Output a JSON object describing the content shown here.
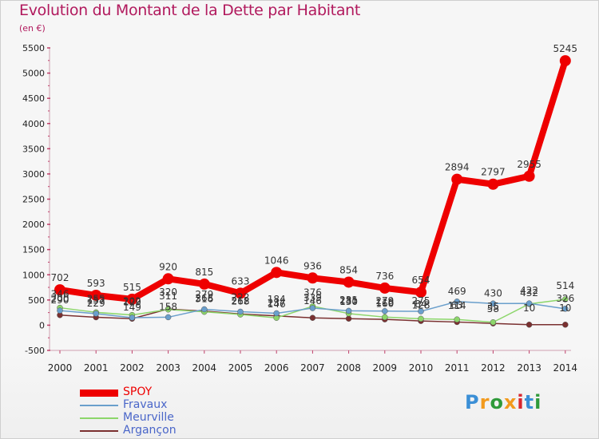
{
  "title": "Evolution du Montant de la Dette par Habitant",
  "subtitle": "(en €)",
  "logo": {
    "text": "Proxiti",
    "colors": [
      "#3b8fd6",
      "#f29a1d",
      "#2f9a3a",
      "#f29a1d",
      "#d8262e",
      "#3b8fd6",
      "#2f9a3a"
    ]
  },
  "chart_data": {
    "type": "line",
    "x": [
      "2000",
      "2001",
      "2002",
      "2003",
      "2004",
      "2005",
      "2006",
      "2007",
      "2008",
      "2009",
      "2010",
      "2011",
      "2012",
      "2013",
      "2014"
    ],
    "ylim": [
      -500,
      5500
    ],
    "yticks": [
      "-500",
      "0",
      "500",
      "1000",
      "1500",
      "2000",
      "2500",
      "3000",
      "3500",
      "4000",
      "4500",
      "5000",
      "5500"
    ],
    "grid": false,
    "legend_position": "bottom-left",
    "series": [
      {
        "name": "SPOY",
        "color": "#ee0000",
        "values": [
          702,
          593,
          515,
          920,
          815,
          633,
          1046,
          936,
          854,
          736,
          654,
          2894,
          2797,
          2955,
          5245
        ],
        "labels": [
          "702",
          "593",
          "515",
          "920",
          "815",
          "633",
          "1046",
          "936",
          "854",
          "736",
          "654",
          "2894",
          "2797",
          "2955",
          "5245"
        ]
      },
      {
        "name": "Fravaux",
        "color": "#6a9fcc",
        "values": [
          290,
          229,
          149,
          158,
          316,
          268,
          237,
          339,
          285,
          279,
          275,
          469,
          430,
          432,
          326
        ],
        "labels": [
          "290",
          "229",
          "149",
          "158",
          "316",
          "268",
          "237",
          "339",
          "285",
          "279",
          "275",
          "469",
          "430",
          "432",
          "326"
        ]
      },
      {
        "name": "Meurville",
        "color": "#8cd66a",
        "values": [
          346,
          255,
          202,
          311,
          265,
          212,
          146,
          376,
          231,
          160,
          128,
          114,
          58,
          422,
          514
        ],
        "labels": [
          "346",
          "255",
          "202",
          "311",
          "265",
          "212",
          "146",
          "376",
          "231",
          "160",
          "128",
          "114",
          "58",
          "422",
          "514"
        ]
      },
      {
        "name": "Argançon",
        "color": "#7a3030",
        "values": [
          200,
          157,
          129,
          320,
          279,
          222,
          184,
          146,
          130,
          116,
          84,
          63,
          35,
          10,
          10
        ],
        "labels": [
          "200",
          "157",
          "129",
          "320",
          "279",
          "222",
          "184",
          "146",
          "130",
          "116",
          "84",
          "63",
          "35",
          "10",
          "10"
        ]
      }
    ]
  }
}
